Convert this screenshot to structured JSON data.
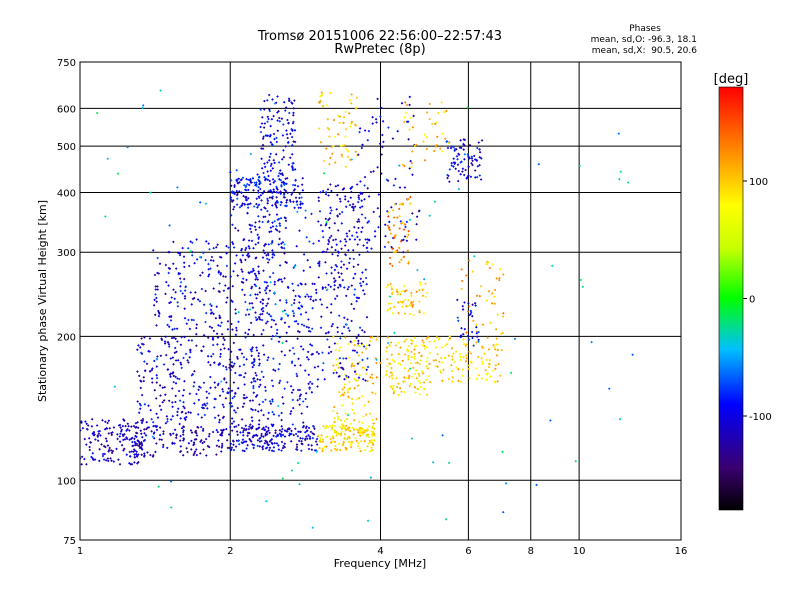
{
  "chart_data": {
    "type": "scatter",
    "title": "Tromsø 20151006 22:56:00–22:57:43",
    "subtitle": "RwPretec (8p)",
    "xlabel": "Frequency [MHz]",
    "ylabel": "Stationary phase Virtual Height [km]",
    "x_scale": "log",
    "y_scale": "log",
    "xlim": [
      1,
      16
    ],
    "ylim": [
      75,
      750
    ],
    "x_ticks": [
      1,
      2,
      4,
      6,
      8,
      10,
      16
    ],
    "x_tick_labels": [
      "1",
      "2",
      "4",
      "6",
      "8",
      "10",
      "16"
    ],
    "y_ticks": [
      75,
      100,
      200,
      300,
      400,
      500,
      600,
      750
    ],
    "y_tick_labels": [
      "75",
      "100",
      "200",
      "300",
      "400",
      "500",
      "600",
      "750"
    ],
    "grid": true,
    "stats": {
      "heading": "Phases",
      "line1": "mean, sd,O: -96.3, 18.1",
      "line2": "mean, sd,X:  90.5, 20.6"
    },
    "colorbar": {
      "label": "[deg]",
      "min": -180,
      "max": 180,
      "tick_labels": [
        "100",
        "0",
        "-100"
      ],
      "tick_values": [
        100,
        0,
        -100
      ]
    },
    "clusters": [
      {
        "f0": 1.0,
        "f1": 1.35,
        "h0": 108,
        "h1": 135,
        "phase": -110,
        "count": 140
      },
      {
        "f0": 1.2,
        "f1": 2.0,
        "h0": 112,
        "h1": 130,
        "phase": -115,
        "count": 160
      },
      {
        "f0": 1.3,
        "f1": 2.3,
        "h0": 130,
        "h1": 200,
        "phase": -105,
        "count": 320
      },
      {
        "f0": 1.4,
        "f1": 2.4,
        "h0": 200,
        "h1": 320,
        "phase": -100,
        "count": 240
      },
      {
        "f0": 2.0,
        "f1": 3.0,
        "h0": 115,
        "h1": 130,
        "phase": -105,
        "count": 200
      },
      {
        "f0": 2.2,
        "f1": 3.0,
        "h0": 130,
        "h1": 260,
        "phase": -100,
        "count": 200
      },
      {
        "f0": 2.0,
        "f1": 2.6,
        "h0": 260,
        "h1": 450,
        "phase": -105,
        "count": 140
      },
      {
        "f0": 2.0,
        "f1": 2.8,
        "h0": 370,
        "h1": 430,
        "phase": -95,
        "count": 160
      },
      {
        "f0": 2.3,
        "f1": 2.7,
        "h0": 430,
        "h1": 640,
        "phase": -100,
        "count": 120
      },
      {
        "f0": 2.4,
        "f1": 3.0,
        "h0": 200,
        "h1": 370,
        "phase": -70,
        "count": 50
      },
      {
        "f0": 3.0,
        "f1": 3.9,
        "h0": 115,
        "h1": 130,
        "phase": 90,
        "count": 150
      },
      {
        "f0": 3.2,
        "f1": 4.0,
        "h0": 130,
        "h1": 200,
        "phase": 95,
        "count": 110
      },
      {
        "f0": 3.0,
        "f1": 3.8,
        "h0": 250,
        "h1": 420,
        "phase": -105,
        "count": 170
      },
      {
        "f0": 3.0,
        "f1": 3.8,
        "h0": 160,
        "h1": 260,
        "phase": -95,
        "count": 90
      },
      {
        "f0": 3.0,
        "f1": 3.6,
        "h0": 450,
        "h1": 650,
        "phase": 100,
        "count": 60
      },
      {
        "f0": 3.6,
        "f1": 4.8,
        "h0": 300,
        "h1": 640,
        "phase": -100,
        "count": 90
      },
      {
        "f0": 4.1,
        "f1": 5.0,
        "h0": 150,
        "h1": 200,
        "phase": 95,
        "count": 120
      },
      {
        "f0": 4.1,
        "f1": 5.0,
        "h0": 220,
        "h1": 260,
        "phase": 100,
        "count": 60
      },
      {
        "f0": 4.1,
        "f1": 4.6,
        "h0": 280,
        "h1": 400,
        "phase": 125,
        "count": 50
      },
      {
        "f0": 5.0,
        "f1": 7.0,
        "h0": 160,
        "h1": 200,
        "phase": 95,
        "count": 110
      },
      {
        "f0": 5.4,
        "f1": 6.4,
        "h0": 420,
        "h1": 520,
        "phase": -100,
        "count": 80
      },
      {
        "f0": 4.4,
        "f1": 5.5,
        "h0": 450,
        "h1": 620,
        "phase": 100,
        "count": 40
      },
      {
        "f0": 5.8,
        "f1": 7.2,
        "h0": 200,
        "h1": 300,
        "phase": 110,
        "count": 40
      },
      {
        "f0": 5.7,
        "f1": 6.3,
        "h0": 190,
        "h1": 240,
        "phase": -95,
        "count": 30
      },
      {
        "f0": 1.0,
        "f1": 13.0,
        "h0": 78,
        "h1": 700,
        "phase": -40,
        "count": 90
      }
    ]
  }
}
